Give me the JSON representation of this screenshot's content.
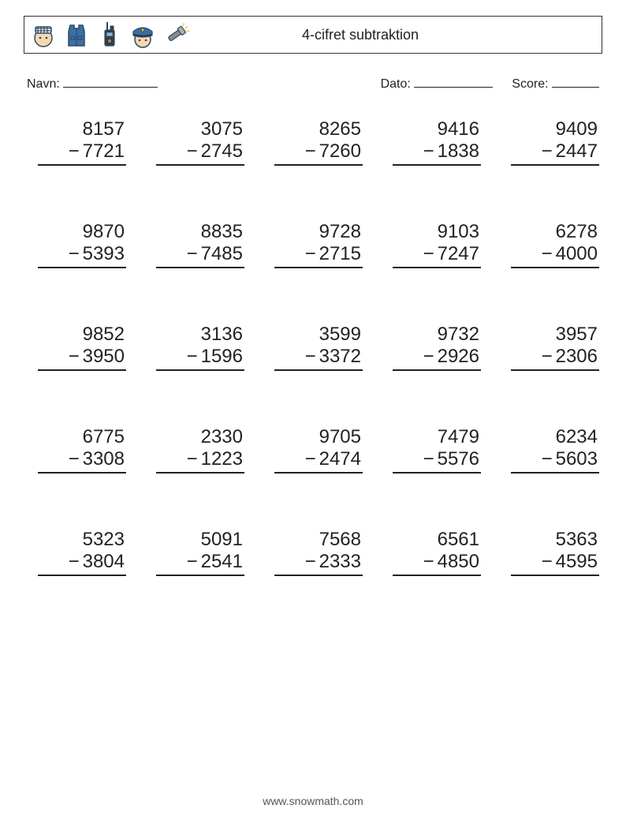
{
  "header": {
    "title": "4-cifret subtraktion",
    "icons": [
      "prisoner-icon",
      "vest-icon",
      "radio-icon",
      "police-hat-icon",
      "flashlight-icon"
    ]
  },
  "meta": {
    "name_label": "Navn:",
    "date_label": "Dato:",
    "score_label": "Score:"
  },
  "style": {
    "font_size_problem": 24,
    "font_size_title": 18,
    "font_size_meta": 16,
    "font_size_footer": 14,
    "text_color": "#222222",
    "border_color": "#333333",
    "background": "#ffffff",
    "icon_stroke": "#2f4a63",
    "icon_fill_skin": "#f6d7b0",
    "icon_fill_blue": "#3b6ea5",
    "icon_fill_dark": "#3a3a3a",
    "icon_fill_gray": "#8a8a8a",
    "cols": 5,
    "rows": 5
  },
  "problems": [
    {
      "a": "8157",
      "b": "7721"
    },
    {
      "a": "3075",
      "b": "2745"
    },
    {
      "a": "8265",
      "b": "7260"
    },
    {
      "a": "9416",
      "b": "1838"
    },
    {
      "a": "9409",
      "b": "2447"
    },
    {
      "a": "9870",
      "b": "5393"
    },
    {
      "a": "8835",
      "b": "7485"
    },
    {
      "a": "9728",
      "b": "2715"
    },
    {
      "a": "9103",
      "b": "7247"
    },
    {
      "a": "6278",
      "b": "4000"
    },
    {
      "a": "9852",
      "b": "3950"
    },
    {
      "a": "3136",
      "b": "1596"
    },
    {
      "a": "3599",
      "b": "3372"
    },
    {
      "a": "9732",
      "b": "2926"
    },
    {
      "a": "3957",
      "b": "2306"
    },
    {
      "a": "6775",
      "b": "3308"
    },
    {
      "a": "2330",
      "b": "1223"
    },
    {
      "a": "9705",
      "b": "2474"
    },
    {
      "a": "7479",
      "b": "5576"
    },
    {
      "a": "6234",
      "b": "5603"
    },
    {
      "a": "5323",
      "b": "3804"
    },
    {
      "a": "5091",
      "b": "2541"
    },
    {
      "a": "7568",
      "b": "2333"
    },
    {
      "a": "6561",
      "b": "4850"
    },
    {
      "a": "5363",
      "b": "4595"
    }
  ],
  "minus_sign": "−",
  "footer": "www.snowmath.com"
}
